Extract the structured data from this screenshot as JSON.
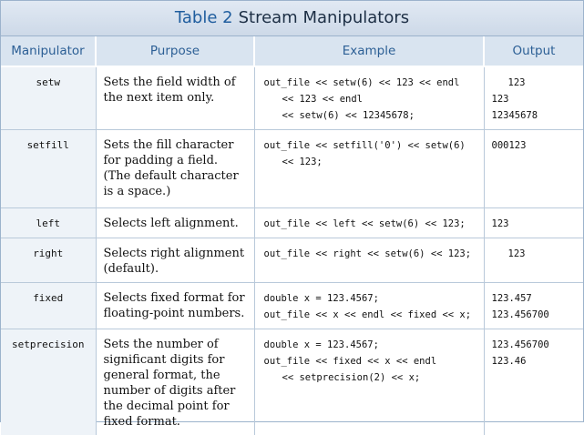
{
  "table": {
    "number": "Table 2",
    "title": "Stream Manipulators",
    "columns": [
      "Manipulator",
      "Purpose",
      "Example",
      "Output"
    ],
    "rows": [
      {
        "manipulator": "setw",
        "purpose": "Sets the field width of the next item only.",
        "example": [
          "out_file << setw(6) << 123 << endl",
          "<< 123 << endl",
          "<< setw(6) << 12345678;"
        ],
        "output": [
          "123",
          "123",
          "12345678"
        ]
      },
      {
        "manipulator": "setfill",
        "purpose": "Sets the fill character for padding a field. (The default character is a space.)",
        "example": [
          "out_file << setfill('0') << setw(6)",
          "<< 123;"
        ],
        "output": [
          "000123"
        ]
      },
      {
        "manipulator": "left",
        "purpose": "Selects left alignment.",
        "example": [
          "out_file << left << setw(6) << 123;"
        ],
        "output": [
          "123"
        ]
      },
      {
        "manipulator": "right",
        "purpose": "Selects right alignment (default).",
        "example": [
          "out_file << right << setw(6) << 123;"
        ],
        "output": [
          "123"
        ]
      },
      {
        "manipulator": "fixed",
        "purpose": "Selects fixed format for floating-point numbers.",
        "example": [
          "double x = 123.4567;",
          "out_file << x << endl << fixed << x;"
        ],
        "output": [
          "123.457",
          "123.456700"
        ]
      },
      {
        "manipulator": "setprecision",
        "purpose": "Sets the number of significant digits for general format, the number of digits after the decimal point for fixed format.",
        "example": [
          "double x = 123.4567;",
          "out_file << fixed << x << endl",
          "<< setprecision(2) << x;"
        ],
        "output": [
          "123.456700",
          "123.46"
        ]
      }
    ]
  }
}
